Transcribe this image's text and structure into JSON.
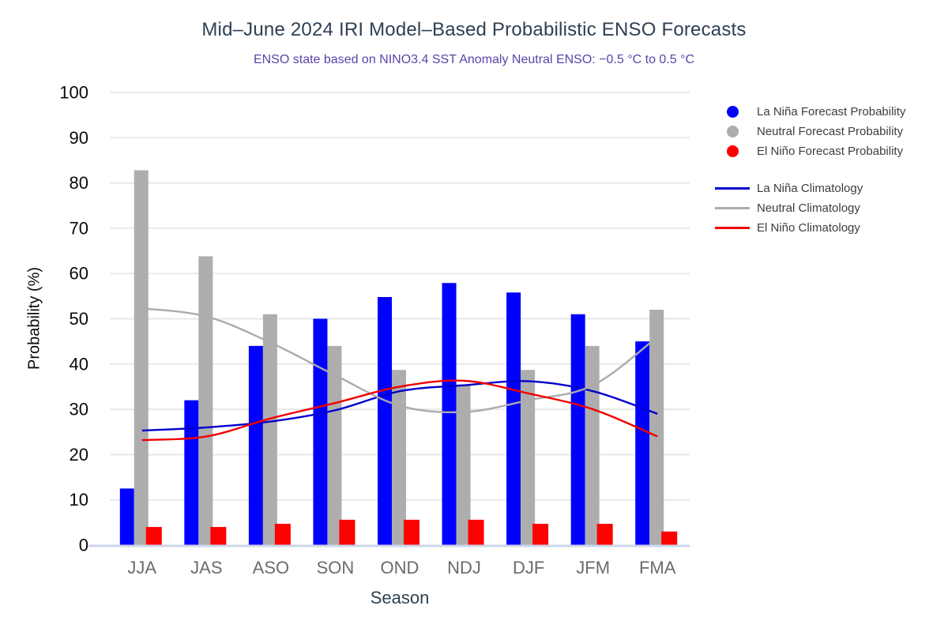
{
  "chart_data": {
    "type": "bar",
    "title": "Mid–June 2024 IRI Model–Based Probabilistic ENSO Forecasts",
    "subtitle": "ENSO state based on NINO3.4 SST Anomaly Neutral ENSO: −0.5 °C to 0.5 °C",
    "xlabel": "Season",
    "ylabel": "Probability (%)",
    "ylim": [
      0,
      100
    ],
    "yticks": [
      0,
      10,
      20,
      30,
      40,
      50,
      60,
      70,
      80,
      90,
      100
    ],
    "grid": true,
    "legend_position": "top-right",
    "categories": [
      "JJA",
      "JAS",
      "ASO",
      "SON",
      "OND",
      "NDJ",
      "DJF",
      "JFM",
      "FMA"
    ],
    "bar_series": [
      {
        "name": "La Niña Forecast Probability",
        "color": "#0000ff",
        "values": [
          12.5,
          32,
          44,
          50,
          54.8,
          57.9,
          55.8,
          51,
          45
        ]
      },
      {
        "name": "Neutral Forecast Probability",
        "color": "#adadad",
        "values": [
          82.8,
          63.8,
          51,
          44,
          38.7,
          35.5,
          38.7,
          44,
          52
        ]
      },
      {
        "name": "El Niño Forecast Probability",
        "color": "#ff0000",
        "values": [
          4,
          4,
          4.7,
          5.6,
          5.6,
          5.6,
          4.7,
          4.7,
          3
        ]
      }
    ],
    "line_series": [
      {
        "name": "La Niña Climatology",
        "color": "#0000cd",
        "values": [
          25.3,
          26,
          27.3,
          29.8,
          34,
          35.3,
          36.2,
          34,
          29
        ]
      },
      {
        "name": "Neutral Climatology",
        "color": "#ababab",
        "values": [
          52.3,
          50.5,
          44.7,
          37.5,
          30.8,
          29.4,
          32,
          35.3,
          46
        ]
      },
      {
        "name": "El Niño Climatology",
        "color": "#f00000",
        "values": [
          23.2,
          24,
          28,
          31.4,
          35,
          36.3,
          33.5,
          30,
          24
        ]
      }
    ]
  },
  "colors": {
    "grid": "#e8e8e8",
    "baseline": "#ccd6eb",
    "ytick_text": "#0a0a0a",
    "xtick_text": "#6b6b6b",
    "background": "#ffffff",
    "title_text": "#2e4053",
    "subtitle_text": "#5b44a8"
  }
}
